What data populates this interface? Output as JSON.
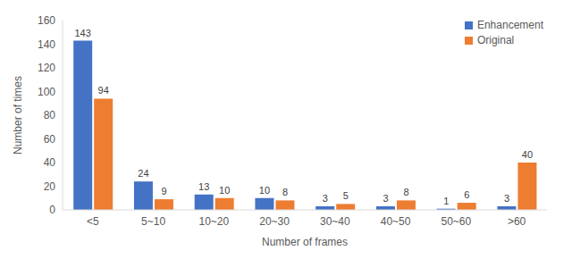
{
  "chart_data": {
    "type": "bar",
    "x_label": "Number of frames",
    "y_label": "Number of times",
    "categories": [
      "<5",
      "5~10",
      "10~20",
      "20~30",
      "30~40",
      "40~50",
      "50~60",
      ">60"
    ],
    "series": [
      {
        "name": "Enhancement",
        "color": "#4472c4",
        "values": [
          143,
          24,
          13,
          10,
          3,
          3,
          1,
          3
        ]
      },
      {
        "name": "Original",
        "color": "#ed7d31",
        "values": [
          94,
          9,
          10,
          8,
          5,
          8,
          6,
          40
        ]
      }
    ],
    "ylim": [
      0,
      160
    ],
    "yticks": [
      0,
      20,
      40,
      60,
      80,
      100,
      120,
      140,
      160
    ],
    "grid": false,
    "legend": "upper right",
    "data_labels": true
  }
}
